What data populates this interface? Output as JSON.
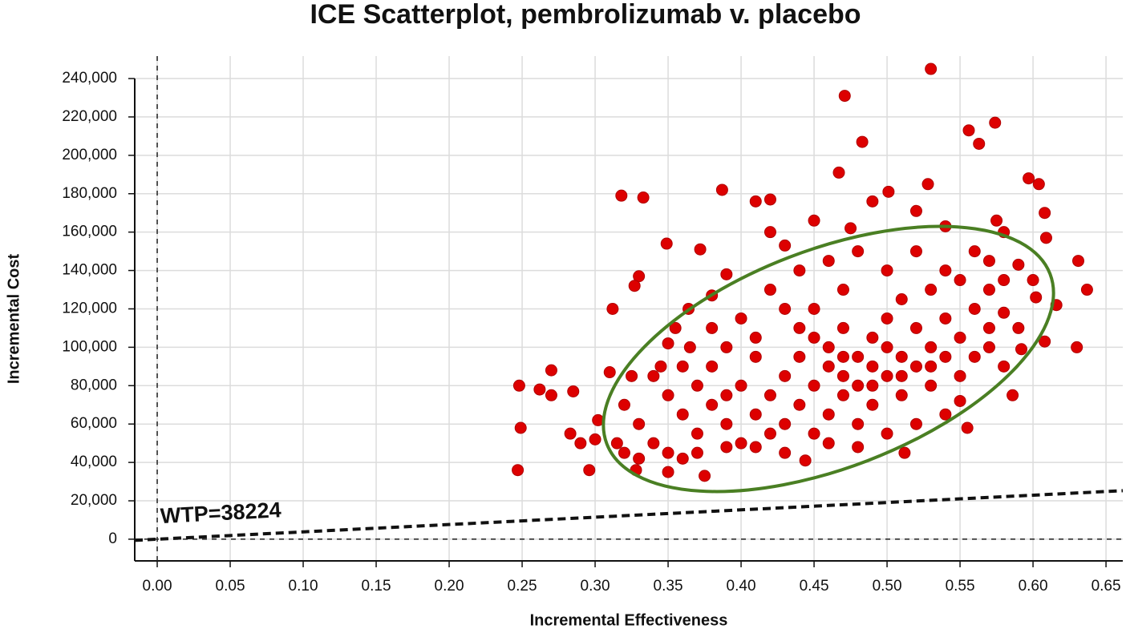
{
  "chart_data": {
    "type": "scatter",
    "title": "ICE Scatterplot, pembrolizumab v. placebo",
    "x_label": "Incremental Effectiveness",
    "y_label": "Incremental Cost",
    "xlim": [
      -0.0154,
      0.6615
    ],
    "ylim": [
      -11300,
      251700
    ],
    "xticks": [
      {
        "value": 0,
        "label": "0.00"
      },
      {
        "value": 0.05,
        "label": "0.05"
      },
      {
        "value": 0.1,
        "label": "0.10"
      },
      {
        "value": 0.15,
        "label": "0.15"
      },
      {
        "value": 0.2,
        "label": "0.20"
      },
      {
        "value": 0.25,
        "label": "0.25"
      },
      {
        "value": 0.3,
        "label": "0.30"
      },
      {
        "value": 0.35,
        "label": "0.35"
      },
      {
        "value": 0.4,
        "label": "0.40"
      },
      {
        "value": 0.45,
        "label": "0.45"
      },
      {
        "value": 0.5,
        "label": "0.50"
      },
      {
        "value": 0.55,
        "label": "0.55"
      },
      {
        "value": 0.6,
        "label": "0.60"
      },
      {
        "value": 0.65,
        "label": "0.65"
      }
    ],
    "yticks": [
      0,
      {
        "value": 20000,
        "label": "20,000"
      },
      {
        "value": 40000,
        "label": "40,000"
      },
      {
        "value": 60000,
        "label": "60,000"
      },
      {
        "value": 80000,
        "label": "80,000"
      },
      {
        "value": 100000,
        "label": "100,000"
      },
      {
        "value": 120000,
        "label": "120,000"
      },
      {
        "value": 140000,
        "label": "140,000"
      },
      {
        "value": 160000,
        "label": "160,000"
      },
      {
        "value": 180000,
        "label": "180,000"
      },
      {
        "value": 200000,
        "label": "200,000"
      },
      {
        "value": 220000,
        "label": "220,000"
      },
      {
        "value": 240000,
        "label": "240,000"
      }
    ],
    "grid": true,
    "wtp": 38224,
    "wtp_label": "WTP=38224",
    "series": [
      {
        "color": "#dd0000",
        "x": [
          0.53,
          0.471,
          0.574,
          0.556,
          0.483,
          0.563,
          0.467,
          0.597,
          0.604,
          0.387,
          0.528,
          0.318,
          0.333,
          0.501,
          0.608,
          0.41,
          0.42,
          0.609,
          0.631,
          0.637,
          0.63,
          0.608,
          0.248,
          0.249,
          0.247,
          0.27,
          0.262,
          0.27,
          0.285,
          0.283,
          0.29,
          0.296,
          0.3,
          0.302,
          0.312,
          0.33,
          0.327,
          0.349,
          0.372,
          0.375,
          0.35,
          0.328,
          0.444,
          0.512,
          0.555,
          0.586,
          0.592,
          0.616,
          0.602,
          0.58,
          0.575,
          0.35,
          0.364,
          0.38,
          0.39,
          0.42,
          0.43,
          0.45,
          0.475,
          0.49,
          0.52,
          0.54,
          0.56,
          0.59,
          0.6,
          0.58,
          0.57,
          0.36,
          0.37,
          0.38,
          0.39,
          0.4,
          0.4,
          0.41,
          0.41,
          0.42,
          0.42,
          0.43,
          0.43,
          0.44,
          0.44,
          0.44,
          0.45,
          0.45,
          0.45,
          0.46,
          0.46,
          0.46,
          0.47,
          0.47,
          0.47,
          0.47,
          0.48,
          0.48,
          0.48,
          0.49,
          0.49,
          0.49,
          0.5,
          0.5,
          0.5,
          0.51,
          0.51,
          0.51,
          0.52,
          0.52,
          0.53,
          0.53,
          0.53,
          0.54,
          0.54,
          0.55,
          0.55,
          0.56,
          0.56,
          0.57,
          0.57,
          0.58,
          0.59,
          0.39,
          0.38,
          0.37,
          0.36,
          0.35,
          0.34,
          0.33,
          0.32,
          0.34,
          0.35,
          0.36,
          0.37,
          0.39,
          0.41,
          0.43,
          0.46,
          0.48,
          0.5,
          0.52,
          0.54,
          0.55,
          0.44,
          0.46,
          0.48,
          0.5,
          0.52,
          0.54,
          0.42,
          0.4,
          0.43,
          0.45,
          0.47,
          0.49,
          0.51,
          0.53,
          0.55,
          0.57,
          0.58,
          0.41,
          0.39,
          0.38,
          0.365,
          0.355,
          0.345,
          0.325,
          0.31,
          0.315,
          0.32,
          0.33
        ],
        "values": [
          245000,
          231000,
          217000,
          213000,
          207000,
          206000,
          191000,
          188000,
          185000,
          182000,
          185000,
          179000,
          178000,
          181000,
          170000,
          176000,
          177000,
          157000,
          145000,
          130000,
          100000,
          103000,
          80000,
          58000,
          36000,
          88000,
          78000,
          75000,
          77000,
          55000,
          50000,
          36000,
          52000,
          62000,
          120000,
          137000,
          132000,
          154000,
          151000,
          33000,
          35000,
          36000,
          41000,
          45000,
          58000,
          75000,
          99000,
          122000,
          126000,
          160000,
          166000,
          102000,
          120000,
          127000,
          138000,
          160000,
          153000,
          166000,
          162000,
          176000,
          171000,
          163000,
          150000,
          143000,
          135000,
          118000,
          110000,
          65000,
          55000,
          70000,
          60000,
          50000,
          80000,
          65000,
          95000,
          55000,
          75000,
          85000,
          60000,
          70000,
          95000,
          110000,
          80000,
          55000,
          120000,
          90000,
          65000,
          100000,
          75000,
          85000,
          110000,
          130000,
          80000,
          95000,
          60000,
          90000,
          105000,
          70000,
          85000,
          115000,
          100000,
          95000,
          75000,
          125000,
          90000,
          110000,
          100000,
          80000,
          130000,
          95000,
          115000,
          105000,
          85000,
          120000,
          95000,
          100000,
          130000,
          90000,
          110000,
          100000,
          90000,
          80000,
          90000,
          75000,
          85000,
          60000,
          70000,
          50000,
          45000,
          42000,
          45000,
          48000,
          48000,
          45000,
          50000,
          48000,
          55000,
          60000,
          65000,
          72000,
          140000,
          145000,
          150000,
          140000,
          150000,
          140000,
          130000,
          115000,
          120000,
          105000,
          95000,
          80000,
          85000,
          90000,
          135000,
          145000,
          135000,
          105000,
          75000,
          110000,
          100000,
          110000,
          90000,
          85000,
          87000,
          50000,
          45000,
          42000
        ]
      }
    ]
  }
}
